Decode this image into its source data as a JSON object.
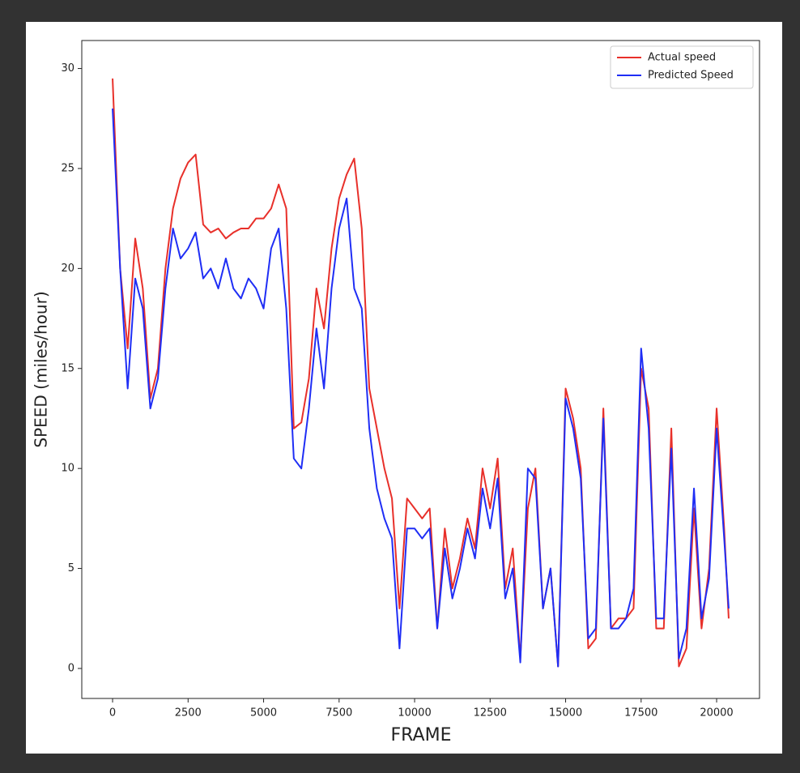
{
  "chart_data": {
    "type": "line",
    "xlabel": "FRAME",
    "ylabel": "SPEED (miles/hour)",
    "x": [
      0,
      250,
      500,
      750,
      1000,
      1250,
      1500,
      1750,
      2000,
      2250,
      2500,
      2750,
      3000,
      3250,
      3500,
      3750,
      4000,
      4250,
      4500,
      4750,
      5000,
      5250,
      5500,
      5750,
      6000,
      6250,
      6500,
      6750,
      7000,
      7250,
      7500,
      7750,
      8000,
      8250,
      8500,
      8750,
      9000,
      9250,
      9500,
      9750,
      10000,
      10250,
      10500,
      10750,
      11000,
      11250,
      11500,
      11750,
      12000,
      12250,
      12500,
      12750,
      13000,
      13250,
      13500,
      13750,
      14000,
      14250,
      14500,
      14750,
      15000,
      15250,
      15500,
      15750,
      16000,
      16250,
      16500,
      16750,
      17000,
      17250,
      17500,
      17750,
      18000,
      18250,
      18500,
      18750,
      19000,
      19250,
      19500,
      19750,
      20000,
      20250,
      20400
    ],
    "series": [
      {
        "name": "Actual speed",
        "color": "#e8302a",
        "values": [
          29.5,
          20,
          16,
          21.5,
          19,
          13.5,
          15,
          20,
          23,
          24.5,
          25.3,
          25.7,
          22.2,
          21.8,
          22,
          21.5,
          21.8,
          22,
          22,
          22.5,
          22.5,
          23,
          24.2,
          23,
          12,
          12.3,
          14.5,
          19,
          17,
          21,
          23.5,
          24.7,
          25.5,
          22,
          14,
          12,
          10,
          8.5,
          3,
          8.5,
          8,
          7.5,
          8,
          2,
          7,
          4,
          5.5,
          7.5,
          6,
          10,
          8,
          10.5,
          4,
          6,
          0.5,
          8,
          10,
          3,
          5,
          0.1,
          14,
          12.5,
          10,
          1,
          1.5,
          13,
          2,
          2.5,
          2.5,
          3,
          15,
          13,
          2,
          2,
          12,
          0.1,
          1,
          8,
          2,
          5,
          13,
          7,
          2.5
        ]
      },
      {
        "name": "Predicted Speed",
        "color": "#1f2ef5",
        "values": [
          28,
          20,
          14,
          19.5,
          18,
          13,
          14.5,
          19,
          22,
          20.5,
          21,
          21.8,
          19.5,
          20,
          19,
          20.5,
          19,
          18.5,
          19.5,
          19,
          18,
          21,
          22,
          18,
          10.5,
          10,
          13,
          17,
          14,
          19,
          22,
          23.5,
          19,
          18,
          12,
          9,
          7.5,
          6.5,
          1,
          7,
          7,
          6.5,
          7,
          2,
          6,
          3.5,
          5,
          7,
          5.5,
          9,
          7,
          9.5,
          3.5,
          5,
          0.3,
          10,
          9.5,
          3,
          5,
          0.1,
          13.5,
          12,
          9.5,
          1.5,
          2,
          12.5,
          2,
          2,
          2.5,
          4,
          16,
          12,
          2.5,
          2.5,
          11,
          0.5,
          2,
          9,
          2.5,
          4.5,
          12,
          6.5,
          3
        ]
      }
    ],
    "xlim": [
      -1020,
      21420
    ],
    "ylim": [
      -1.5,
      31.4
    ],
    "xticks": [
      0,
      2500,
      5000,
      7500,
      10000,
      12500,
      15000,
      17500,
      20000
    ],
    "yticks": [
      0,
      5,
      10,
      15,
      20,
      25,
      30
    ],
    "grid": false,
    "legend": "upper right"
  }
}
